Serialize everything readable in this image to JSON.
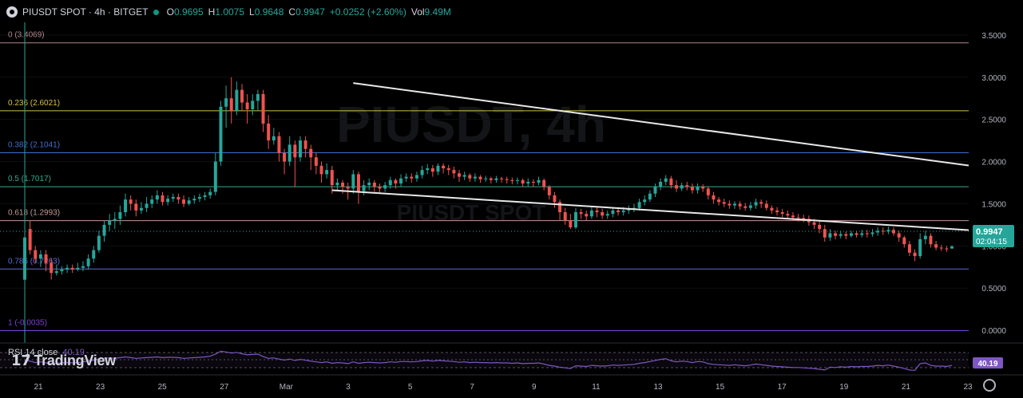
{
  "header": {
    "symbol": "PIUSDT SPOT · 4h · BITGET",
    "open_label": "O",
    "open": "0.9695",
    "high_label": "H",
    "high": "1.0075",
    "low_label": "L",
    "low": "0.9648",
    "close_label": "C",
    "close": "0.9947",
    "change": "+0.0252 (+2.60%)",
    "vol_label": "Vol",
    "vol": "9.49M"
  },
  "watermark": {
    "line1": "PIUSDT, 4h",
    "line2": "PIUSDT SPOT"
  },
  "price_tag": {
    "price": "0.9947",
    "countdown": "02:04:15",
    "color": "#26a69a"
  },
  "rsi": {
    "label": "RSI 14 close",
    "value": "40.19",
    "tag": "40.19",
    "color": "#7e57c2"
  },
  "brand": {
    "name": "TradingView"
  },
  "colors": {
    "up": "#26a69a",
    "down": "#ef5350",
    "background": "#000000"
  },
  "chart_data": {
    "type": "candlestick",
    "timeframe": "4h",
    "y_ticks": [
      "3.5000",
      "3.0000",
      "2.5000",
      "2.0000",
      "1.5000",
      "1.0000",
      "0.5000",
      "0.0000"
    ],
    "ylim": [
      -0.15,
      3.65
    ],
    "x_ticks": [
      "21",
      "23",
      "25",
      "27",
      "Mar",
      "3",
      "5",
      "7",
      "9",
      "11",
      "13",
      "15",
      "17",
      "19",
      "21",
      "23"
    ],
    "fib_levels": [
      {
        "label": "0 (3.4069)",
        "value": 3.4069,
        "color": "#b2878c"
      },
      {
        "label": "0.236 (2.6021)",
        "value": 2.6021,
        "color": "#d4c14a"
      },
      {
        "label": "0.382 (2.1041)",
        "value": 2.1041,
        "color": "#3f6fd1"
      },
      {
        "label": "0.5 (1.7017)",
        "value": 1.7017,
        "color": "#3aa88f"
      },
      {
        "label": "0.618 (1.2993)",
        "value": 1.2993,
        "color": "#c09a96"
      },
      {
        "label": "0.786 (0.7263)",
        "value": 0.7263,
        "color": "#5f6ad8"
      },
      {
        "label": "1 (-0.0035)",
        "value": -0.0035,
        "color": "#7b3fd8"
      }
    ],
    "trendlines": [
      {
        "name": "upper",
        "from": {
          "t": 62,
          "y": 2.93
        },
        "to": {
          "t": 282,
          "y": 1.08
        }
      },
      {
        "name": "lower",
        "from": {
          "t": 58,
          "y": 1.66
        },
        "to": {
          "t": 282,
          "y": 0.78
        }
      }
    ],
    "candles": [
      [
        0.6,
        1.1,
        0.0,
        1.2
      ],
      [
        1.2,
        0.95,
        0.9,
        1.3
      ],
      [
        0.95,
        0.85,
        0.8,
        1.0
      ],
      [
        0.85,
        0.9,
        0.75,
        0.95
      ],
      [
        0.9,
        0.8,
        0.7,
        0.95
      ],
      [
        0.8,
        0.68,
        0.6,
        0.85
      ],
      [
        0.68,
        0.7,
        0.65,
        0.78
      ],
      [
        0.7,
        0.72,
        0.66,
        0.76
      ],
      [
        0.72,
        0.74,
        0.68,
        0.78
      ],
      [
        0.74,
        0.72,
        0.68,
        0.78
      ],
      [
        0.72,
        0.74,
        0.7,
        0.8
      ],
      [
        0.74,
        0.76,
        0.7,
        0.82
      ],
      [
        0.76,
        0.85,
        0.72,
        0.9
      ],
      [
        0.85,
        0.95,
        0.8,
        1.0
      ],
      [
        0.95,
        1.12,
        0.92,
        1.18
      ],
      [
        1.12,
        1.25,
        1.05,
        1.3
      ],
      [
        1.25,
        1.3,
        1.18,
        1.38
      ],
      [
        1.3,
        1.32,
        1.2,
        1.4
      ],
      [
        1.32,
        1.4,
        1.25,
        1.48
      ],
      [
        1.4,
        1.55,
        1.35,
        1.62
      ],
      [
        1.55,
        1.5,
        1.42,
        1.6
      ],
      [
        1.5,
        1.42,
        1.35,
        1.55
      ],
      [
        1.42,
        1.45,
        1.38,
        1.52
      ],
      [
        1.45,
        1.5,
        1.4,
        1.58
      ],
      [
        1.5,
        1.55,
        1.45,
        1.6
      ],
      [
        1.55,
        1.6,
        1.5,
        1.66
      ],
      [
        1.6,
        1.52,
        1.48,
        1.64
      ],
      [
        1.52,
        1.56,
        1.48,
        1.6
      ],
      [
        1.56,
        1.58,
        1.52,
        1.62
      ],
      [
        1.58,
        1.55,
        1.5,
        1.62
      ],
      [
        1.55,
        1.5,
        1.46,
        1.6
      ],
      [
        1.5,
        1.54,
        1.48,
        1.58
      ],
      [
        1.54,
        1.56,
        1.5,
        1.6
      ],
      [
        1.56,
        1.58,
        1.52,
        1.62
      ],
      [
        1.58,
        1.6,
        1.54,
        1.64
      ],
      [
        1.6,
        1.64,
        1.56,
        1.68
      ],
      [
        1.64,
        2.0,
        1.6,
        2.1
      ],
      [
        2.0,
        2.65,
        1.95,
        2.72
      ],
      [
        2.65,
        2.75,
        2.4,
        2.9
      ],
      [
        2.75,
        2.6,
        2.45,
        3.0
      ],
      [
        2.6,
        2.85,
        2.55,
        2.95
      ],
      [
        2.85,
        2.7,
        2.6,
        2.92
      ],
      [
        2.7,
        2.62,
        2.45,
        2.8
      ],
      [
        2.62,
        2.72,
        2.55,
        2.8
      ],
      [
        2.72,
        2.8,
        2.6,
        2.85
      ],
      [
        2.8,
        2.45,
        2.35,
        2.85
      ],
      [
        2.45,
        2.25,
        2.15,
        2.55
      ],
      [
        2.25,
        2.3,
        2.2,
        2.4
      ],
      [
        2.3,
        2.1,
        2.0,
        2.35
      ],
      [
        2.1,
        2.0,
        1.85,
        2.15
      ],
      [
        2.0,
        2.2,
        1.95,
        2.3
      ],
      [
        2.2,
        2.05,
        1.7,
        2.25
      ],
      [
        2.05,
        2.25,
        2.0,
        2.3
      ],
      [
        2.25,
        2.15,
        2.05,
        2.3
      ],
      [
        2.15,
        2.05,
        1.9,
        2.2
      ],
      [
        2.05,
        1.95,
        1.85,
        2.1
      ],
      [
        1.95,
        1.85,
        1.75,
        2.0
      ],
      [
        1.85,
        1.9,
        1.8,
        1.98
      ],
      [
        1.9,
        1.72,
        1.62,
        1.95
      ],
      [
        1.72,
        1.75,
        1.65,
        1.8
      ],
      [
        1.75,
        1.7,
        1.62,
        1.78
      ],
      [
        1.7,
        1.68,
        1.55,
        1.75
      ],
      [
        1.68,
        1.85,
        1.62,
        1.9
      ],
      [
        1.85,
        1.65,
        1.5,
        1.88
      ],
      [
        1.65,
        1.72,
        1.6,
        1.78
      ],
      [
        1.72,
        1.75,
        1.66,
        1.8
      ],
      [
        1.75,
        1.7,
        1.64,
        1.78
      ],
      [
        1.7,
        1.68,
        1.62,
        1.74
      ],
      [
        1.68,
        1.72,
        1.64,
        1.76
      ],
      [
        1.72,
        1.78,
        1.68,
        1.82
      ],
      [
        1.78,
        1.74,
        1.68,
        1.8
      ],
      [
        1.74,
        1.8,
        1.7,
        1.85
      ],
      [
        1.8,
        1.82,
        1.76,
        1.86
      ],
      [
        1.82,
        1.8,
        1.75,
        1.86
      ],
      [
        1.8,
        1.84,
        1.76,
        1.88
      ],
      [
        1.84,
        1.9,
        1.8,
        1.95
      ],
      [
        1.9,
        1.92,
        1.85,
        1.97
      ],
      [
        1.92,
        1.88,
        1.82,
        1.96
      ],
      [
        1.88,
        1.95,
        1.84,
        1.98
      ],
      [
        1.95,
        1.92,
        1.86,
        1.98
      ],
      [
        1.92,
        1.9,
        1.84,
        1.96
      ],
      [
        1.9,
        1.86,
        1.8,
        1.94
      ],
      [
        1.86,
        1.82,
        1.76,
        1.9
      ],
      [
        1.82,
        1.84,
        1.78,
        1.88
      ],
      [
        1.84,
        1.8,
        1.76,
        1.86
      ],
      [
        1.8,
        1.82,
        1.76,
        1.86
      ],
      [
        1.82,
        1.79,
        1.75,
        1.84
      ],
      [
        1.79,
        1.8,
        1.76,
        1.83
      ],
      [
        1.8,
        1.78,
        1.74,
        1.82
      ],
      [
        1.78,
        1.8,
        1.75,
        1.83
      ],
      [
        1.8,
        1.79,
        1.75,
        1.82
      ],
      [
        1.79,
        1.78,
        1.74,
        1.82
      ],
      [
        1.78,
        1.77,
        1.73,
        1.81
      ],
      [
        1.77,
        1.78,
        1.73,
        1.81
      ],
      [
        1.78,
        1.74,
        1.7,
        1.8
      ],
      [
        1.74,
        1.76,
        1.7,
        1.8
      ],
      [
        1.76,
        1.75,
        1.7,
        1.79
      ],
      [
        1.75,
        1.78,
        1.72,
        1.82
      ],
      [
        1.78,
        1.7,
        1.66,
        1.8
      ],
      [
        1.7,
        1.6,
        1.55,
        1.72
      ],
      [
        1.6,
        1.52,
        1.45,
        1.64
      ],
      [
        1.52,
        1.4,
        1.3,
        1.55
      ],
      [
        1.4,
        1.3,
        1.25,
        1.45
      ],
      [
        1.3,
        1.22,
        1.2,
        1.38
      ],
      [
        1.22,
        1.4,
        1.2,
        1.45
      ],
      [
        1.4,
        1.38,
        1.32,
        1.44
      ],
      [
        1.38,
        1.35,
        1.3,
        1.42
      ],
      [
        1.35,
        1.42,
        1.32,
        1.46
      ],
      [
        1.42,
        1.4,
        1.34,
        1.46
      ],
      [
        1.4,
        1.36,
        1.32,
        1.44
      ],
      [
        1.36,
        1.38,
        1.32,
        1.42
      ],
      [
        1.38,
        1.42,
        1.34,
        1.46
      ],
      [
        1.42,
        1.4,
        1.36,
        1.46
      ],
      [
        1.4,
        1.42,
        1.36,
        1.46
      ],
      [
        1.42,
        1.44,
        1.38,
        1.48
      ],
      [
        1.44,
        1.45,
        1.4,
        1.5
      ],
      [
        1.45,
        1.52,
        1.42,
        1.56
      ],
      [
        1.52,
        1.55,
        1.48,
        1.6
      ],
      [
        1.55,
        1.62,
        1.52,
        1.66
      ],
      [
        1.62,
        1.7,
        1.58,
        1.74
      ],
      [
        1.7,
        1.76,
        1.66,
        1.8
      ],
      [
        1.76,
        1.8,
        1.72,
        1.84
      ],
      [
        1.8,
        1.72,
        1.68,
        1.83
      ],
      [
        1.72,
        1.68,
        1.64,
        1.78
      ],
      [
        1.68,
        1.72,
        1.65,
        1.75
      ],
      [
        1.72,
        1.7,
        1.66,
        1.76
      ],
      [
        1.7,
        1.66,
        1.62,
        1.74
      ],
      [
        1.66,
        1.7,
        1.62,
        1.74
      ],
      [
        1.7,
        1.68,
        1.64,
        1.73
      ],
      [
        1.68,
        1.6,
        1.55,
        1.7
      ],
      [
        1.6,
        1.55,
        1.5,
        1.64
      ],
      [
        1.55,
        1.52,
        1.48,
        1.58
      ],
      [
        1.52,
        1.5,
        1.46,
        1.56
      ],
      [
        1.5,
        1.48,
        1.44,
        1.54
      ],
      [
        1.48,
        1.5,
        1.44,
        1.53
      ],
      [
        1.5,
        1.47,
        1.43,
        1.53
      ],
      [
        1.47,
        1.45,
        1.42,
        1.51
      ],
      [
        1.45,
        1.48,
        1.42,
        1.52
      ],
      [
        1.48,
        1.52,
        1.44,
        1.56
      ],
      [
        1.52,
        1.5,
        1.45,
        1.55
      ],
      [
        1.5,
        1.45,
        1.42,
        1.54
      ],
      [
        1.45,
        1.42,
        1.38,
        1.48
      ],
      [
        1.42,
        1.4,
        1.36,
        1.46
      ],
      [
        1.4,
        1.38,
        1.34,
        1.44
      ],
      [
        1.38,
        1.36,
        1.32,
        1.42
      ],
      [
        1.36,
        1.34,
        1.3,
        1.4
      ],
      [
        1.34,
        1.33,
        1.29,
        1.38
      ],
      [
        1.33,
        1.32,
        1.28,
        1.37
      ],
      [
        1.32,
        1.28,
        1.24,
        1.36
      ],
      [
        1.28,
        1.25,
        1.2,
        1.32
      ],
      [
        1.25,
        1.2,
        1.15,
        1.3
      ],
      [
        1.2,
        1.1,
        1.05,
        1.25
      ],
      [
        1.1,
        1.15,
        1.06,
        1.2
      ],
      [
        1.15,
        1.12,
        1.08,
        1.18
      ],
      [
        1.12,
        1.14,
        1.09,
        1.18
      ],
      [
        1.14,
        1.12,
        1.08,
        1.17
      ],
      [
        1.12,
        1.15,
        1.1,
        1.18
      ],
      [
        1.15,
        1.13,
        1.1,
        1.18
      ],
      [
        1.13,
        1.15,
        1.1,
        1.19
      ],
      [
        1.15,
        1.14,
        1.1,
        1.19
      ],
      [
        1.14,
        1.16,
        1.11,
        1.2
      ],
      [
        1.16,
        1.18,
        1.12,
        1.22
      ],
      [
        1.18,
        1.17,
        1.13,
        1.22
      ],
      [
        1.17,
        1.19,
        1.14,
        1.23
      ],
      [
        1.19,
        1.15,
        1.12,
        1.22
      ],
      [
        1.15,
        1.1,
        1.05,
        1.18
      ],
      [
        1.1,
        1.02,
        0.98,
        1.12
      ],
      [
        1.02,
        0.92,
        0.88,
        1.06
      ],
      [
        0.92,
        0.88,
        0.82,
        0.96
      ],
      [
        0.88,
        1.08,
        0.85,
        1.15
      ],
      [
        1.08,
        1.12,
        1.02,
        1.18
      ],
      [
        1.12,
        1.02,
        0.98,
        1.15
      ],
      [
        1.02,
        0.98,
        0.95,
        1.06
      ],
      [
        0.98,
        0.97,
        0.94,
        1.01
      ],
      [
        0.97,
        0.96,
        0.93,
        1.0
      ],
      [
        0.9695,
        0.9947,
        0.9648,
        1.0075
      ]
    ],
    "rsi_values": [
      55,
      52,
      48,
      50,
      47,
      45,
      46,
      47,
      48,
      47,
      48,
      50,
      52,
      55,
      58,
      60,
      61,
      60,
      62,
      64,
      62,
      60,
      61,
      62,
      63,
      64,
      62,
      63,
      63,
      62,
      60,
      61,
      62,
      63,
      64,
      66,
      72,
      80,
      78,
      75,
      77,
      73,
      70,
      71,
      72,
      65,
      60,
      61,
      58,
      55,
      58,
      54,
      57,
      55,
      52,
      50,
      48,
      50,
      46,
      48,
      47,
      45,
      50,
      46,
      48,
      49,
      48,
      47,
      48,
      50,
      49,
      51,
      51,
      50,
      51,
      53,
      54,
      52,
      54,
      53,
      52,
      51,
      49,
      50,
      48,
      49,
      48,
      48,
      47,
      48,
      47,
      47,
      46,
      47,
      45,
      46,
      46,
      47,
      44,
      40,
      38,
      35,
      33,
      31,
      39,
      38,
      37,
      40,
      39,
      38,
      39,
      41,
      40,
      41,
      42,
      43,
      46,
      48,
      51,
      54,
      57,
      59,
      53,
      50,
      52,
      51,
      48,
      51,
      50,
      45,
      43,
      42,
      41,
      40,
      42,
      40,
      39,
      41,
      44,
      42,
      40,
      38,
      37,
      36,
      35,
      34,
      34,
      33,
      32,
      31,
      29,
      27,
      35,
      34,
      36,
      35,
      37,
      36,
      37,
      37,
      38,
      40,
      39,
      41,
      38,
      35,
      31,
      27,
      26,
      45,
      47,
      40,
      38,
      38,
      37,
      40
    ]
  }
}
